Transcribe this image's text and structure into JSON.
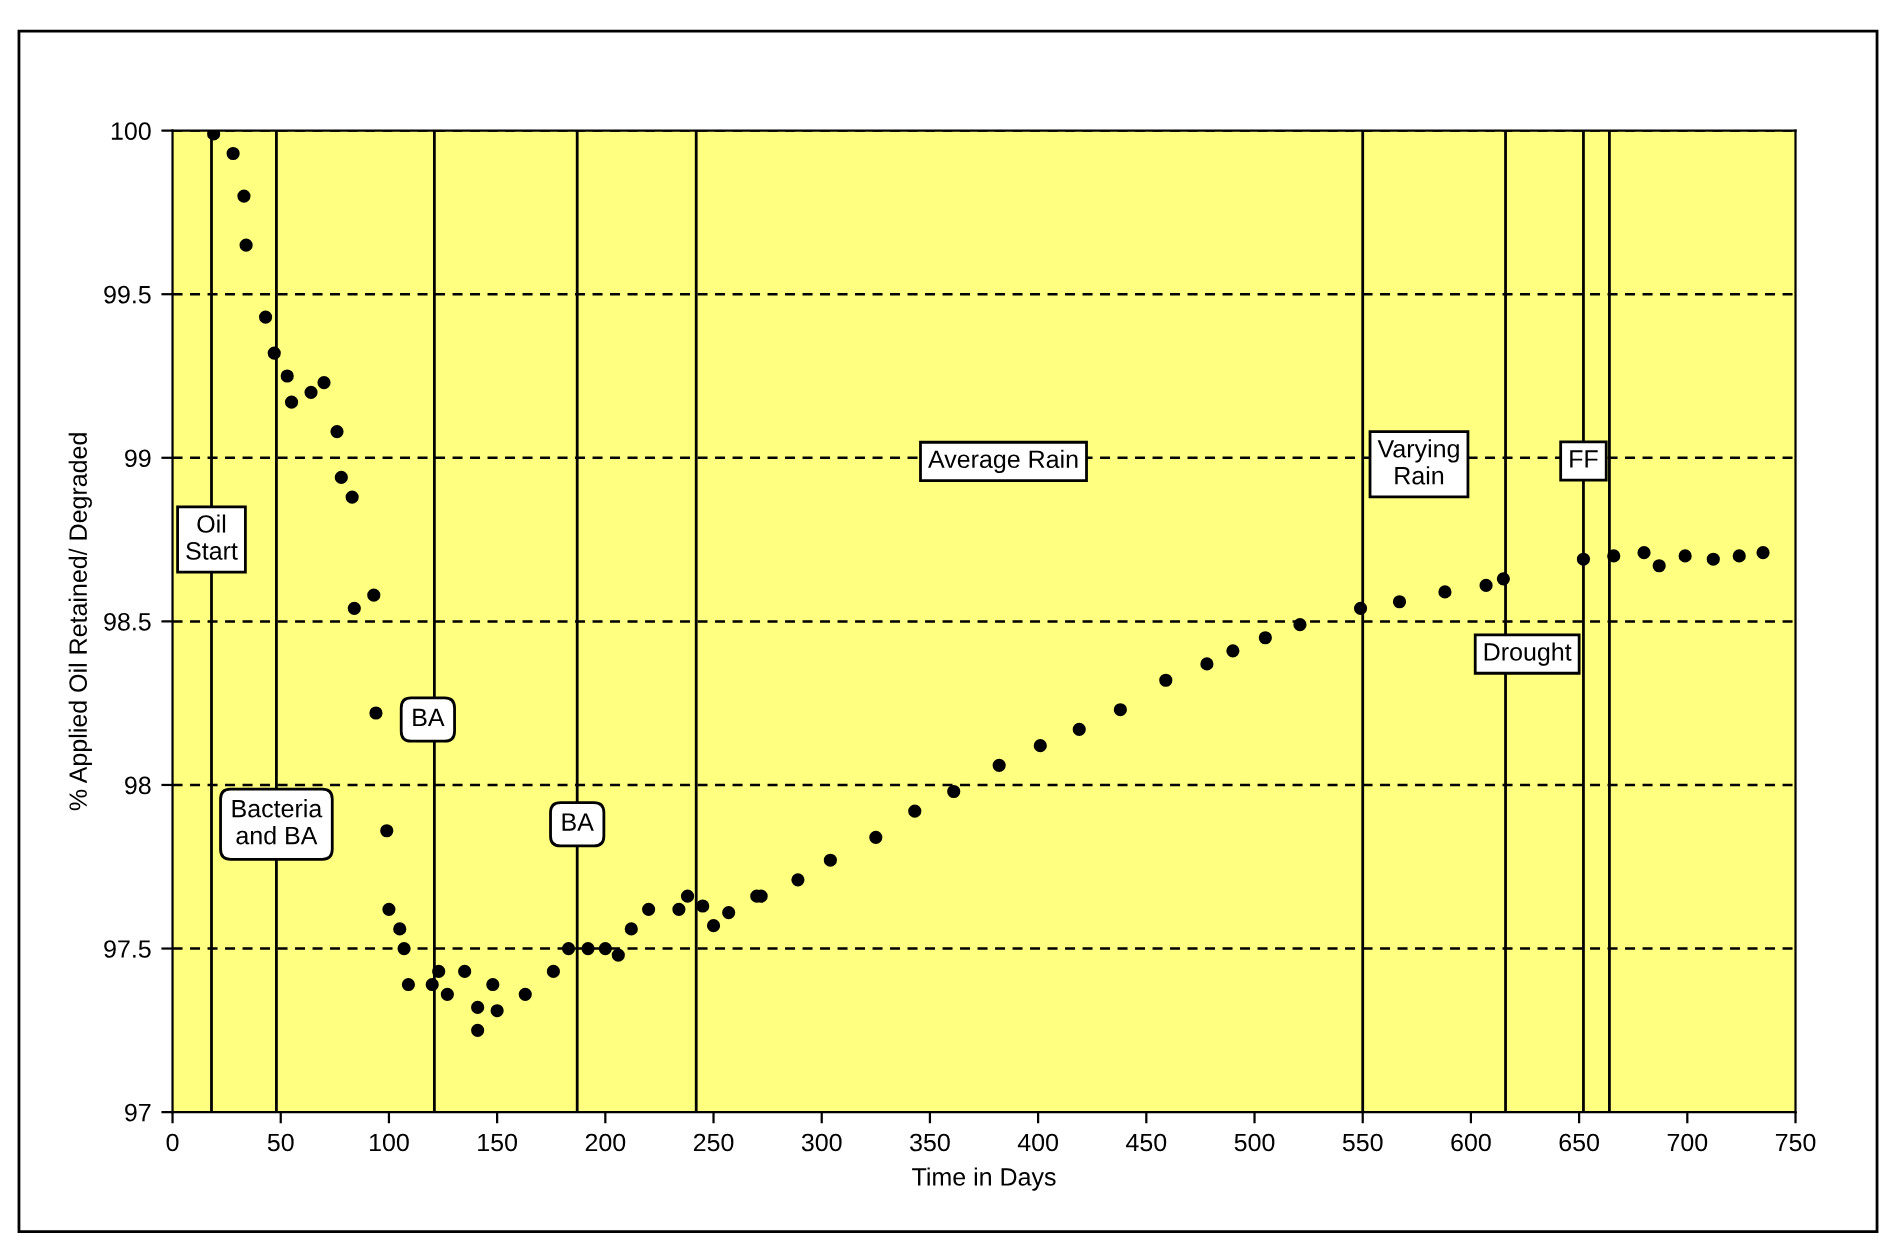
{
  "chart_data": {
    "type": "scatter",
    "xlabel": "Time in Days",
    "ylabel": "% Applied Oil Retained/ Degraded",
    "x": [
      19,
      28,
      33,
      34,
      43,
      47,
      53,
      55,
      64,
      70,
      76,
      78,
      83,
      84,
      93,
      94,
      99,
      100,
      105,
      107,
      109,
      120,
      123,
      127,
      135,
      141,
      141,
      148,
      150,
      163,
      176,
      183,
      192,
      200,
      206,
      212,
      220,
      234,
      238,
      245,
      250,
      257,
      270,
      272,
      289,
      304,
      325,
      343,
      361,
      382,
      401,
      419,
      438,
      459,
      478,
      490,
      505,
      521,
      549,
      567,
      588,
      607,
      615,
      652,
      666,
      680,
      687,
      699,
      712,
      724,
      735
    ],
    "series": [
      {
        "color": "#000000",
        "values": [
          99.99,
          99.93,
          99.8,
          99.65,
          99.43,
          99.32,
          99.25,
          99.17,
          99.2,
          99.23,
          99.08,
          98.94,
          98.88,
          98.54,
          98.58,
          98.22,
          97.86,
          97.62,
          97.56,
          97.5,
          97.39,
          97.39,
          97.43,
          97.36,
          97.43,
          97.32,
          97.25,
          97.39,
          97.31,
          97.36,
          97.43,
          97.5,
          97.5,
          97.5,
          97.48,
          97.56,
          97.62,
          97.62,
          97.66,
          97.63,
          97.57,
          97.61,
          97.66,
          97.66,
          97.71,
          97.77,
          97.84,
          97.92,
          97.98,
          98.06,
          98.12,
          98.17,
          98.23,
          98.32,
          98.37,
          98.41,
          98.45,
          98.49,
          98.54,
          98.56,
          98.59,
          98.61,
          98.63,
          98.69,
          98.7,
          98.71,
          98.67,
          98.7,
          98.69,
          98.7,
          98.71
        ]
      }
    ],
    "marker": "circle",
    "xlim": [
      0,
      750
    ],
    "xticks": [
      0,
      50,
      100,
      150,
      200,
      250,
      300,
      350,
      400,
      450,
      500,
      550,
      600,
      650,
      700,
      750
    ],
    "ylim": [
      97,
      100
    ],
    "yticks": [
      97,
      97.5,
      98,
      98.5,
      99,
      99.5,
      100
    ],
    "grid": "y",
    "legend": false,
    "ref_lines": [
      {
        "axis": "x",
        "value": 18,
        "label": "Oil\nStart",
        "color": "#000000"
      },
      {
        "axis": "x",
        "value": 48,
        "label": "Bacteria\nand BA",
        "color": "#000000"
      },
      {
        "axis": "x",
        "value": 121,
        "label": "BA",
        "color": "#000000"
      },
      {
        "axis": "x",
        "value": 187,
        "label": "BA",
        "color": "#000000"
      },
      {
        "axis": "x",
        "value": 242,
        "color": "#000000"
      },
      {
        "axis": "x",
        "value": 550,
        "label": "Varying\nRain",
        "color": "#000000"
      },
      {
        "axis": "x",
        "value": 616,
        "label": "Drought",
        "color": "#000000"
      },
      {
        "axis": "x",
        "value": 652,
        "label": "FF",
        "color": "#000000"
      },
      {
        "axis": "x",
        "value": 664,
        "color": "#000000"
      }
    ],
    "annotations": [
      "Average Rain"
    ]
  }
}
